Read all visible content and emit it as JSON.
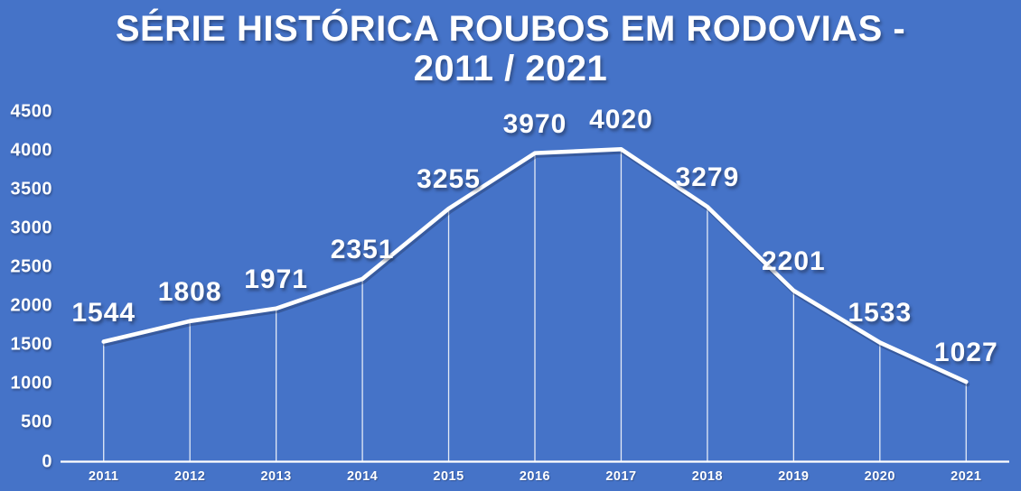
{
  "title": {
    "line1": "SÉRIE HISTÓRICA ROUBOS EM RODOVIAS -",
    "line2": "2011 / 2021"
  },
  "colors": {
    "background": "#4573C8",
    "line": "#FFFFFF",
    "text": "#FFFFFF"
  },
  "chart_data": {
    "type": "line",
    "title": "SÉRIE HISTÓRICA ROUBOS EM RODOVIAS - 2011 / 2021",
    "categories": [
      "2011",
      "2012",
      "2013",
      "2014",
      "2015",
      "2016",
      "2017",
      "2018",
      "2019",
      "2020",
      "2021"
    ],
    "values": [
      1544,
      1808,
      1971,
      2351,
      3255,
      3970,
      4020,
      3279,
      2201,
      1533,
      1027
    ],
    "data_labels": [
      "1544",
      "1808",
      "1971",
      "2351",
      "3255",
      "3970",
      "4020",
      "3279",
      "2201",
      "1533",
      "1027"
    ],
    "xlabel": "",
    "ylabel": "",
    "ylim": [
      0,
      4500
    ],
    "yticks": [
      0,
      500,
      1000,
      1500,
      2000,
      2500,
      3000,
      3500,
      4000,
      4500
    ],
    "grid": false,
    "drop_lines": true,
    "legend": "none",
    "line_color": "#FFFFFF"
  }
}
